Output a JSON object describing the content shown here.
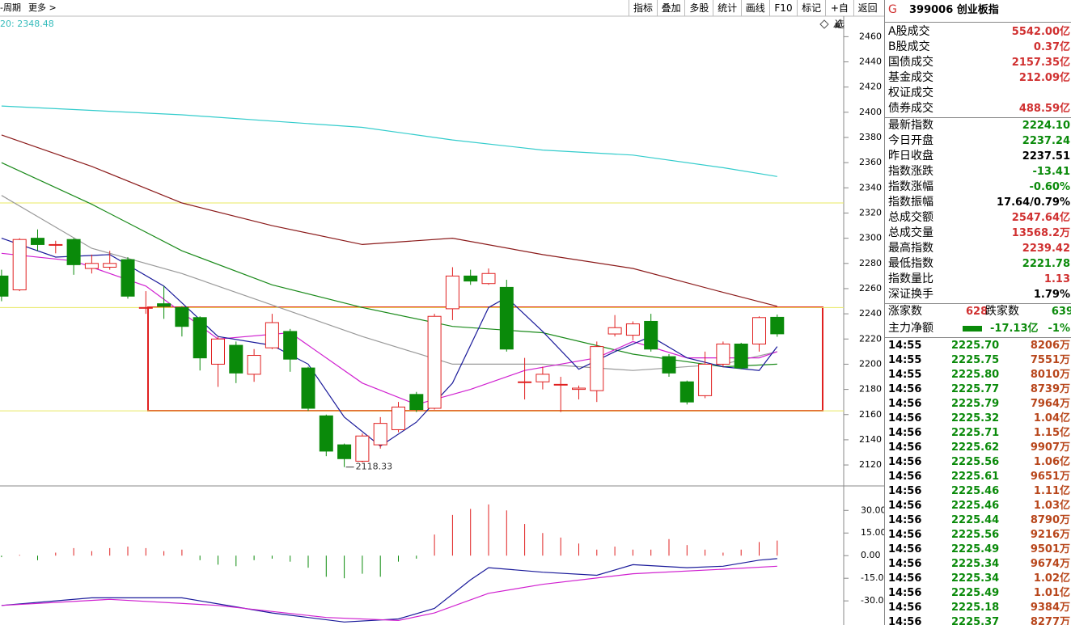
{
  "toolbar": {
    "period": "-周期",
    "more": "更多 >",
    "buttons": [
      "指标",
      "叠加",
      "多股",
      "统计",
      "画线",
      "F10",
      "标记",
      "+自选",
      "返回"
    ]
  },
  "chart": {
    "ma_label": "20: 2348.48",
    "ylim": [
      2104,
      2475
    ],
    "yticks": [
      2460,
      2440,
      2420,
      2400,
      2380,
      2360,
      2340,
      2320,
      2300,
      2280,
      2260,
      2240,
      2220,
      2200,
      2180,
      2160,
      2140,
      2120
    ],
    "ref_lines": [
      2328,
      2245,
      2163
    ],
    "ref_color": "#e8e860",
    "up_color": "#e02020",
    "down_color": "#0a8a0a",
    "candles": {
      "open": [
        2270,
        2259,
        2300,
        2295,
        2299,
        2276,
        2277,
        2283,
        2245,
        2248,
        2245,
        2237,
        2200,
        2215,
        2192,
        2213,
        2226,
        2197,
        2159,
        2136,
        2123,
        2136,
        2148,
        2176,
        2165,
        2244,
        2270,
        2264,
        2261,
        2186,
        2186,
        2184,
        2180,
        2179,
        2224,
        2223,
        2234,
        2206,
        2186,
        2175,
        2200,
        2216,
        2216,
        2237.24
      ],
      "high": [
        2275,
        2300,
        2307,
        2298,
        2300,
        2287,
        2290,
        2285,
        2258,
        2262,
        2246,
        2238,
        2222,
        2218,
        2212,
        2240,
        2228,
        2198,
        2160,
        2137,
        2145,
        2158,
        2170,
        2178,
        2240,
        2277,
        2275,
        2276,
        2267,
        2205,
        2198,
        2190,
        2183,
        2218,
        2239,
        2234,
        2240,
        2208,
        2187,
        2210,
        2218,
        2217,
        2238,
        2239.42
      ],
      "low": [
        2250,
        2258,
        2290,
        2288,
        2271,
        2272,
        2275,
        2252,
        2240,
        2236,
        2222,
        2195,
        2182,
        2185,
        2186,
        2212,
        2194,
        2163,
        2127,
        2118.33,
        2122,
        2133,
        2146,
        2162,
        2164,
        2235,
        2263,
        2263,
        2210,
        2172,
        2180,
        2162,
        2172,
        2170,
        2222,
        2219,
        2210,
        2190,
        2168,
        2173,
        2198,
        2196,
        2210,
        2221.78
      ],
      "close": [
        2254,
        2299,
        2295,
        2295,
        2279,
        2280,
        2280,
        2254,
        2245,
        2246,
        2230,
        2205,
        2220,
        2193,
        2207,
        2233,
        2204,
        2165,
        2131,
        2125,
        2143,
        2153,
        2166,
        2164,
        2238,
        2270,
        2266,
        2272,
        2212,
        2186,
        2192,
        2184,
        2181,
        2214,
        2229,
        2232,
        2212,
        2193,
        2170,
        2200,
        2216,
        2197,
        2237,
        2224.1
      ]
    },
    "low_marker": {
      "index": 19,
      "value": 2118.33,
      "label": "2118.33"
    },
    "ma_lines": [
      {
        "color": "#33cccc",
        "x": [
          0,
          10,
          20,
          25,
          30,
          35,
          40,
          43
        ],
        "values": [
          2405,
          2398,
          2388,
          2378,
          2370,
          2366,
          2356,
          2349
        ]
      },
      {
        "color": "#8b1a1a",
        "x": [
          0,
          5,
          10,
          15,
          20,
          25,
          30,
          35,
          40,
          43
        ],
        "values": [
          2382,
          2357,
          2328,
          2310,
          2295,
          2300,
          2287,
          2276,
          2257,
          2246
        ]
      },
      {
        "color": "#1a8a1a",
        "x": [
          0,
          5,
          10,
          15,
          20,
          25,
          30,
          35,
          40,
          43
        ],
        "values": [
          2360,
          2327,
          2290,
          2263,
          2245,
          2230,
          2225,
          2208,
          2198,
          2200
        ]
      },
      {
        "color": "#999999",
        "x": [
          0,
          5,
          10,
          15,
          20,
          25,
          30,
          35,
          40,
          43
        ],
        "values": [
          2334,
          2292,
          2272,
          2247,
          2222,
          2200,
          2200,
          2195,
          2200,
          2210
        ]
      },
      {
        "color": "#d020d0",
        "x": [
          0,
          4,
          8,
          12,
          16,
          20,
          23,
          26,
          29,
          33,
          35,
          38,
          42,
          43
        ],
        "values": [
          2288,
          2282,
          2262,
          2220,
          2225,
          2185,
          2168,
          2180,
          2195,
          2205,
          2218,
          2205,
          2205,
          2210
        ]
      },
      {
        "color": "#1a1a9a",
        "x": [
          0,
          3,
          6,
          9,
          12,
          15,
          17,
          19,
          21,
          23,
          25,
          27,
          28,
          30,
          32,
          34,
          36,
          38,
          40,
          42,
          43
        ],
        "values": [
          2300,
          2285,
          2287,
          2262,
          2222,
          2215,
          2200,
          2158,
          2135,
          2154,
          2185,
          2245,
          2253,
          2226,
          2196,
          2210,
          2222,
          2205,
          2198,
          2195,
          2214
        ]
      }
    ],
    "macd": {
      "ylim": [
        -46,
        45.7
      ],
      "yticks": [
        {
          "value": 30,
          "label": "30.00"
        },
        {
          "value": 15,
          "label": "15.00"
        },
        {
          "value": 0,
          "label": "0.00"
        },
        {
          "value": -15,
          "label": "-15.00"
        },
        {
          "value": -30,
          "label": "-30.00"
        }
      ],
      "histogram": [
        -1,
        0.5,
        -3,
        2,
        5,
        3,
        5,
        6,
        5,
        3,
        4,
        -3,
        -6,
        -7,
        -3,
        -2,
        -4,
        -8,
        -14,
        -15,
        -12,
        -14,
        -4,
        -2,
        14,
        27,
        31,
        34,
        30,
        21,
        15,
        12,
        8,
        4,
        6,
        4,
        4,
        11,
        7,
        4,
        2,
        4,
        9,
        10
      ],
      "dif": {
        "color": "#1a1a9a",
        "x": [
          0,
          5,
          10,
          15,
          19,
          22,
          24,
          26,
          27,
          30,
          33,
          35,
          38,
          40,
          42,
          43
        ],
        "values": [
          -33,
          -28,
          -28,
          -38,
          -44,
          -42,
          -35,
          -16,
          -8,
          -11,
          -13,
          -6,
          -8,
          -7,
          -3,
          -2
        ]
      },
      "dea": {
        "color": "#d020d0",
        "x": [
          0,
          6,
          12,
          18,
          22,
          24,
          27,
          30,
          35,
          40,
          43
        ],
        "values": [
          -33,
          -29,
          -33,
          -41,
          -43,
          -38,
          -25,
          -19,
          -12,
          -9,
          -7
        ]
      }
    }
  },
  "quote": {
    "flag": "G",
    "title": "399006 创业板指",
    "volume_rows": [
      {
        "label": "A股成交",
        "value": "5542.00亿",
        "color": "#d03030"
      },
      {
        "label": "B股成交",
        "value": "0.37亿",
        "color": "#d03030"
      },
      {
        "label": "国债成交",
        "value": "2157.35亿",
        "color": "#d03030"
      },
      {
        "label": "基金成交",
        "value": "212.09亿",
        "color": "#d03030"
      },
      {
        "label": "权证成交"
      },
      {
        "label": "债券成交",
        "value": "488.59亿",
        "color": "#d03030"
      }
    ],
    "index_rows": [
      {
        "label": "最新指数",
        "value": "2224.10",
        "color": "#0a8a0a"
      },
      {
        "label": "今日开盘",
        "value": "2237.24",
        "color": "#0a8a0a"
      },
      {
        "label": "昨日收盘",
        "value": "2237.51",
        "color": "#000000"
      },
      {
        "label": "指数涨跌",
        "value": "-13.41",
        "color": "#0a8a0a"
      },
      {
        "label": "指数涨幅",
        "value": "-0.60%",
        "color": "#0a8a0a"
      },
      {
        "label": "指数振幅",
        "value": "17.64/0.79%",
        "color": "#000000"
      },
      {
        "label": "总成交额",
        "value": "2547.64亿",
        "color": "#d03030"
      },
      {
        "label": "总成交量",
        "value": "13568.2万",
        "color": "#d03030"
      },
      {
        "label": "最高指数",
        "value": "2239.42",
        "color": "#d03030"
      },
      {
        "label": "最低指数",
        "value": "2221.78",
        "color": "#0a8a0a"
      },
      {
        "label": "指数量比",
        "value": "1.13",
        "color": "#d03030"
      },
      {
        "label": "深证换手",
        "value": "1.79%",
        "color": "#000000"
      }
    ],
    "breadth": {
      "up_label": "涨家数",
      "up": 628,
      "down_label": "跌家数",
      "down": 639
    },
    "main_flow": {
      "label": "主力净额",
      "value": "-17.13亿",
      "pct": "-1%"
    }
  },
  "trades": [
    [
      "14:55",
      "2225.70",
      "8206万"
    ],
    [
      "14:55",
      "2225.75",
      "7551万"
    ],
    [
      "14:55",
      "2225.80",
      "8010万"
    ],
    [
      "14:56",
      "2225.77",
      "8739万"
    ],
    [
      "14:56",
      "2225.79",
      "7964万"
    ],
    [
      "14:56",
      "2225.32",
      "1.04亿"
    ],
    [
      "14:56",
      "2225.71",
      "1.15亿"
    ],
    [
      "14:56",
      "2225.62",
      "9907万"
    ],
    [
      "14:56",
      "2225.56",
      "1.06亿"
    ],
    [
      "14:56",
      "2225.61",
      "9651万"
    ],
    [
      "14:56",
      "2225.46",
      "1.11亿"
    ],
    [
      "14:56",
      "2225.46",
      "1.03亿"
    ],
    [
      "14:56",
      "2225.44",
      "8790万"
    ],
    [
      "14:56",
      "2225.56",
      "9216万"
    ],
    [
      "14:56",
      "2225.49",
      "9501万"
    ],
    [
      "14:56",
      "2225.34",
      "9674万"
    ],
    [
      "14:56",
      "2225.34",
      "1.02亿"
    ],
    [
      "14:56",
      "2225.49",
      "1.01亿"
    ],
    [
      "14:56",
      "2225.18",
      "9384万"
    ],
    [
      "14:56",
      "2225.37",
      "8277万"
    ]
  ]
}
